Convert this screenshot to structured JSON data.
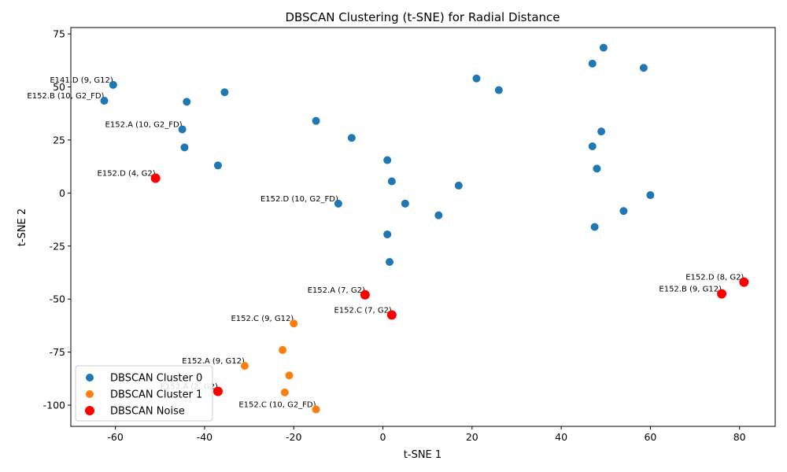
{
  "chart_data": {
    "type": "scatter",
    "title": "DBSCAN Clustering (t-SNE) for Radial Distance",
    "xlabel": "t-SNE 1",
    "ylabel": "t-SNE 2",
    "xlim": [
      -70,
      88
    ],
    "ylim": [
      -110,
      78
    ],
    "xticks": [
      -60,
      -40,
      -20,
      0,
      20,
      40,
      60,
      80
    ],
    "yticks": [
      -100,
      -75,
      -50,
      -25,
      0,
      25,
      50,
      75
    ],
    "grid": false,
    "legend_position": "lower-left",
    "series": [
      {
        "name": "DBSCAN Cluster 0",
        "color": "#1f77b4",
        "points": [
          [
            -60.5,
            51
          ],
          [
            -62.5,
            43.5
          ],
          [
            -44,
            43
          ],
          [
            -35.5,
            47.5
          ],
          [
            -45,
            30
          ],
          [
            -44.5,
            21.5
          ],
          [
            -37,
            13
          ],
          [
            -15,
            34
          ],
          [
            -7,
            26
          ],
          [
            1,
            15.5
          ],
          [
            2,
            5.5
          ],
          [
            17,
            3.5
          ],
          [
            -10,
            -5
          ],
          [
            5,
            -5
          ],
          [
            12.5,
            -10.5
          ],
          [
            1,
            -19.5
          ],
          [
            1.5,
            -32.5
          ],
          [
            21,
            54
          ],
          [
            26,
            48.5
          ],
          [
            49.5,
            68.5
          ],
          [
            47,
            61
          ],
          [
            58.5,
            59
          ],
          [
            49,
            29
          ],
          [
            47,
            22
          ],
          [
            48,
            11.5
          ],
          [
            60,
            -1
          ],
          [
            54,
            -8.5
          ],
          [
            47.5,
            -16
          ]
        ]
      },
      {
        "name": "DBSCAN Cluster 1",
        "color": "#ff7f0e",
        "points": [
          [
            -20,
            -61.5
          ],
          [
            -22.5,
            -74
          ],
          [
            -31,
            -81.5
          ],
          [
            -21,
            -86
          ],
          [
            -22,
            -94
          ],
          [
            -15,
            -102
          ]
        ]
      },
      {
        "name": "DBSCAN Noise",
        "color": "#ff0000",
        "points": [
          [
            -51,
            7
          ],
          [
            -4,
            -48
          ],
          [
            2,
            -57.5
          ],
          [
            81,
            -42
          ],
          [
            76,
            -47.5
          ],
          [
            -37,
            -93.5
          ]
        ]
      }
    ],
    "annotations": [
      {
        "text": "E141.D (9, G12)",
        "x": -60.5,
        "y": 51
      },
      {
        "text": "E152.B (10, G2_FD)",
        "x": -62.5,
        "y": 43.5
      },
      {
        "text": "E152.A (10, G2_FD)",
        "x": -45,
        "y": 30
      },
      {
        "text": "E152.D (4, G2)",
        "x": -51,
        "y": 7
      },
      {
        "text": "E152.D (10, G2_FD)",
        "x": -10,
        "y": -5
      },
      {
        "text": "E152.A (7, G2)",
        "x": -4,
        "y": -48
      },
      {
        "text": "E152.C (7, G2)",
        "x": 2,
        "y": -57.5
      },
      {
        "text": "E152.C (9, G12)",
        "x": -20,
        "y": -61.5
      },
      {
        "text": "E152.A (9, G12)",
        "x": -31,
        "y": -81.5
      },
      {
        "text": "E152.A (2, G2)",
        "x": -37,
        "y": -93.5
      },
      {
        "text": "E152.C (10, G2_FD)",
        "x": -15,
        "y": -102
      },
      {
        "text": "E152.D (8, G2)",
        "x": 81,
        "y": -42
      },
      {
        "text": "E152.B (9, G12)",
        "x": 76,
        "y": -47.5
      }
    ]
  }
}
